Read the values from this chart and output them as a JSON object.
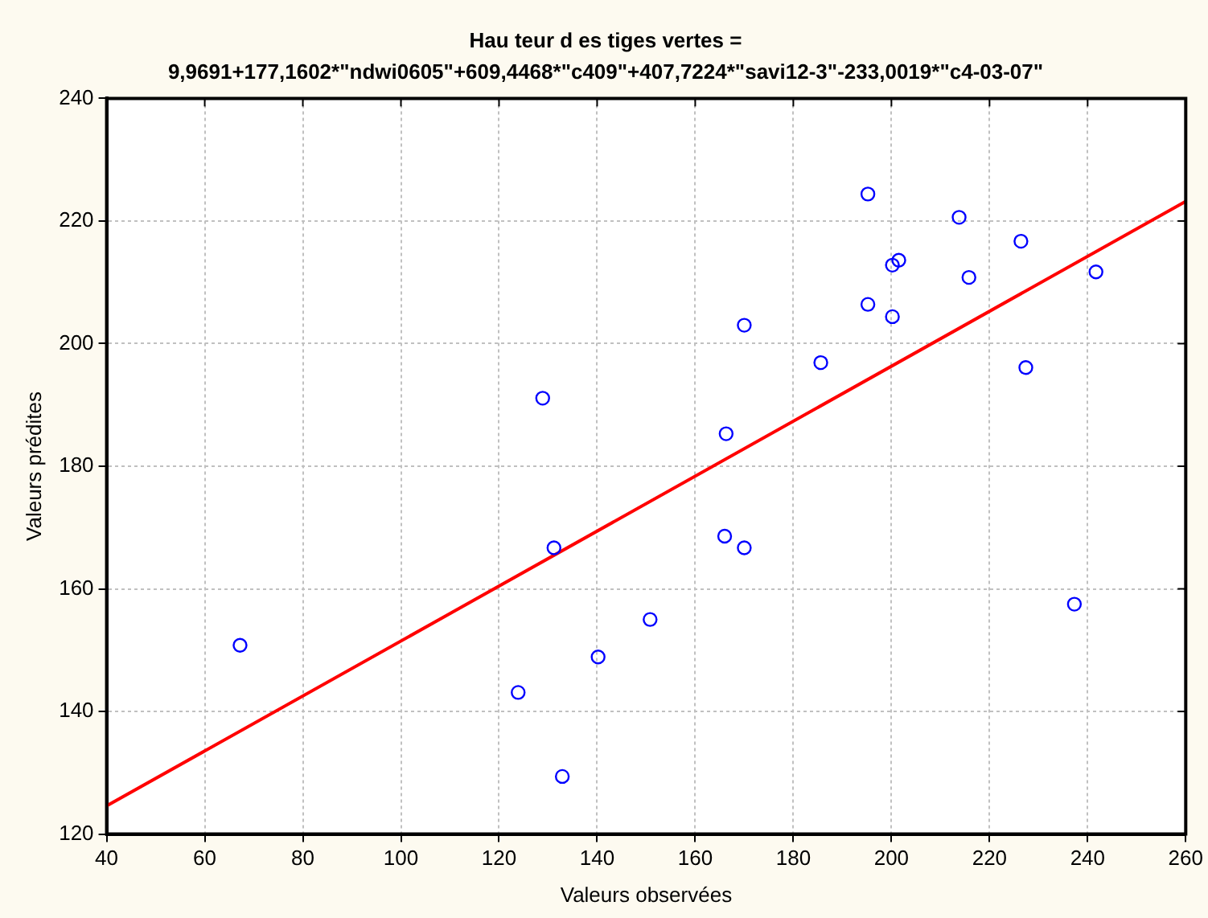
{
  "chart_data": {
    "type": "scatter",
    "title": "Hau teur d es tiges vertes =",
    "subtitle": "9,9691+177,1602*\"ndwi0605\"+609,4468*\"c409\"+407,7224*\"savi12-3\"-233,0019*\"c4-03-07\"",
    "xlabel": "Valeurs observées",
    "ylabel": "Valeurs prédites",
    "xlim": [
      40,
      260
    ],
    "xticks": [
      40,
      60,
      80,
      100,
      120,
      140,
      160,
      180,
      200,
      220,
      240,
      260
    ],
    "ylim": [
      120,
      240
    ],
    "yticks": [
      120,
      140,
      160,
      180,
      200,
      220,
      240
    ],
    "grid": true,
    "legend": false,
    "marker": "circle",
    "series": [
      {
        "color": "#0000ff",
        "x": [
          67.2,
          128.9,
          131.2,
          123.9,
          132.9,
          140.2,
          150.8,
          166,
          166.3,
          170,
          170,
          185.6,
          195.2,
          195.2,
          200.2,
          201.5,
          200.2,
          213.8,
          215.8,
          226.4,
          227.4,
          237.3,
          241.7
        ],
        "values": [
          150.8,
          191.1,
          166.7,
          143.1,
          129.4,
          148.9,
          155,
          168.6,
          185.3,
          166.7,
          203,
          196.9,
          224.4,
          206.4,
          212.8,
          213.6,
          204.4,
          220.6,
          210.8,
          216.7,
          196.1,
          157.5,
          211.7
        ]
      },
      {
        "type": "line",
        "color": "#ff0000",
        "marker": "none",
        "x": [
          40,
          260
        ],
        "values": [
          124.6,
          223.2
        ]
      }
    ]
  }
}
